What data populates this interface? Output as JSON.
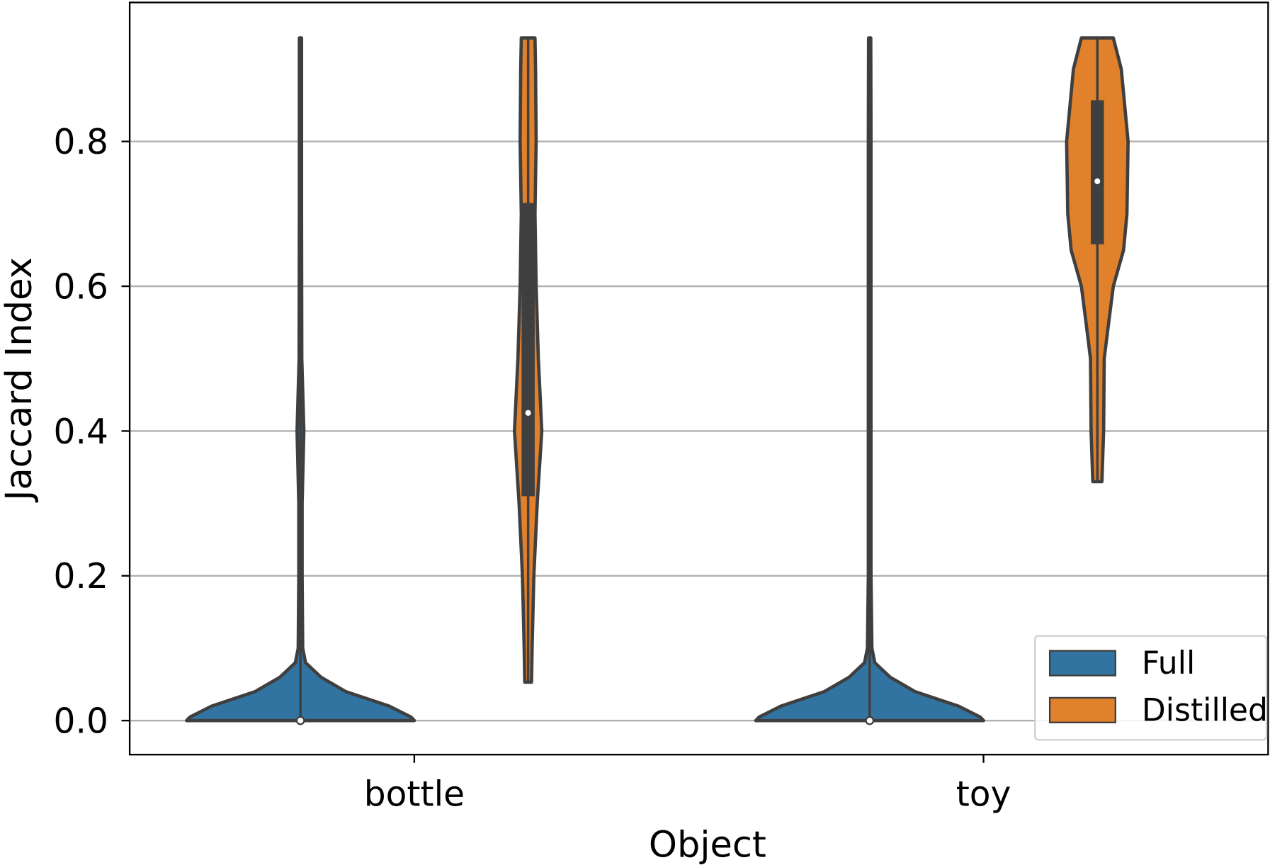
{
  "chart_data": {
    "type": "violin",
    "xlabel": "Object",
    "ylabel": "Jaccard Index",
    "categories": [
      "bottle",
      "toy"
    ],
    "ylim": [
      -0.047,
      0.992
    ],
    "yticks": [
      {
        "value": 0,
        "label": "0.0"
      },
      {
        "value": 0.2,
        "label": "0.2"
      },
      {
        "value": 0.4,
        "label": "0.4"
      },
      {
        "value": 0.6,
        "label": "0.6"
      },
      {
        "value": 0.8,
        "label": "0.8"
      }
    ],
    "grid": true,
    "legend": "lower right",
    "series": [
      {
        "name": "Full",
        "color": "#3274a1",
        "values": [
          {
            "min": 0,
            "q1": 0,
            "median": 0,
            "q3": 0,
            "max": 0.943,
            "density": {
              "y": [
                0,
                0.005,
                0.02,
                0.04,
                0.06,
                0.08,
                0.1,
                0.2,
                0.3,
                0.4,
                0.5,
                0.7,
                0.943
              ],
              "width": [
                1,
                0.97,
                0.78,
                0.4,
                0.18,
                0.045,
                0.02,
                0.015,
                0.015,
                0.03,
                0.012,
                0.01,
                0.01
              ]
            }
          },
          {
            "min": 0,
            "q1": 0,
            "median": 0,
            "q3": 0,
            "max": 0.943,
            "density": {
              "y": [
                0,
                0.005,
                0.02,
                0.04,
                0.06,
                0.08,
                0.1,
                0.2,
                0.4,
                0.6,
                0.8,
                0.943
              ],
              "width": [
                1,
                0.97,
                0.78,
                0.4,
                0.18,
                0.045,
                0.02,
                0.012,
                0.012,
                0.012,
                0.012,
                0.01
              ]
            }
          }
        ]
      },
      {
        "name": "Distilled",
        "color": "#e1812c",
        "values": [
          {
            "min": 0.053,
            "q1": 0.31,
            "median": 0.425,
            "q3": 0.715,
            "max": 0.943,
            "density": {
              "y": [
                0.053,
                0.1,
                0.2,
                0.3,
                0.4,
                0.5,
                0.6,
                0.7,
                0.8,
                0.9,
                0.943
              ],
              "width": [
                0.03,
                0.035,
                0.05,
                0.08,
                0.12,
                0.09,
                0.07,
                0.06,
                0.07,
                0.065,
                0.06
              ]
            }
          },
          {
            "min": 0.33,
            "q1": 0.658,
            "median": 0.745,
            "q3": 0.857,
            "max": 0.943,
            "density": {
              "y": [
                0.33,
                0.4,
                0.5,
                0.55,
                0.6,
                0.65,
                0.7,
                0.8,
                0.9,
                0.943
              ],
              "width": [
                0.04,
                0.055,
                0.06,
                0.1,
                0.14,
                0.23,
                0.26,
                0.27,
                0.21,
                0.14
              ]
            }
          }
        ]
      }
    ]
  }
}
